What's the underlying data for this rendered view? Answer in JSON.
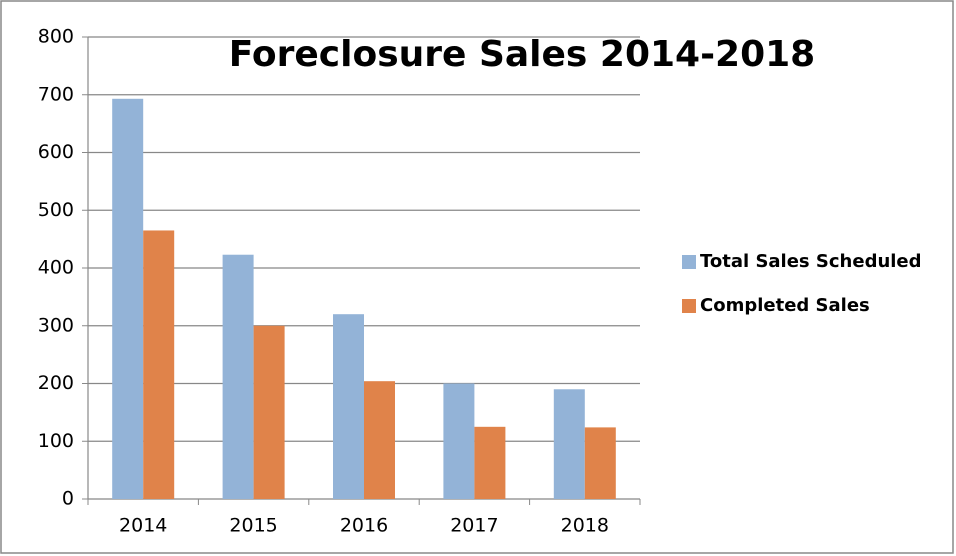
{
  "chart_data": {
    "type": "bar",
    "title": "Foreclosure Sales 2014-2018",
    "categories": [
      "2014",
      "2015",
      "2016",
      "2017",
      "2018"
    ],
    "series": [
      {
        "name": "Total Sales Scheduled",
        "color": "#93b3d7",
        "values": [
          693,
          423,
          320,
          200,
          190
        ]
      },
      {
        "name": "Completed Sales",
        "color": "#e0834a",
        "values": [
          465,
          300,
          204,
          125,
          124
        ]
      }
    ],
    "ylim": [
      0,
      800
    ],
    "yticks": [
      0,
      100,
      200,
      300,
      400,
      500,
      600,
      700,
      800
    ],
    "grid": true,
    "legend": "right"
  }
}
